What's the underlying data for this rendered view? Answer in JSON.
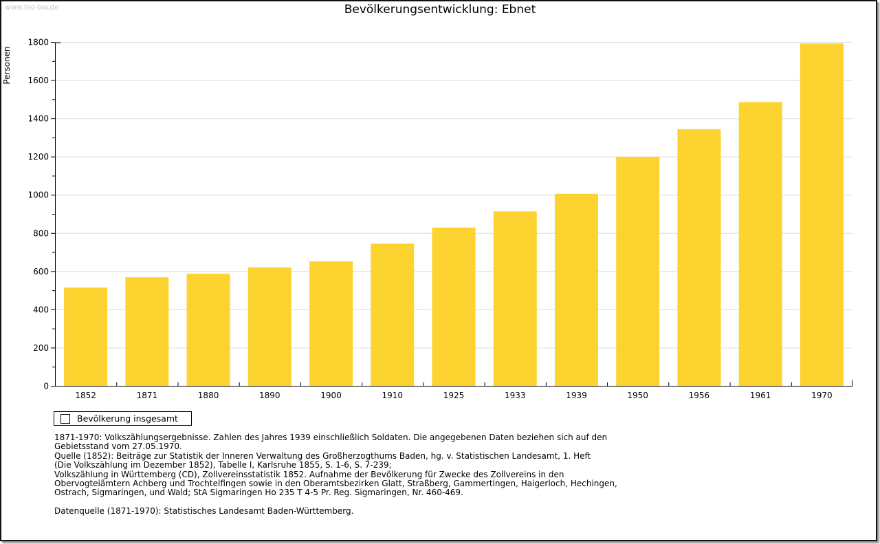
{
  "page": {
    "watermark": "www.leo-bw.de"
  },
  "chart_data": {
    "type": "bar",
    "title": "Bevölkerungsentwicklung: Ebnet",
    "xlabel": "",
    "ylabel": "Personen",
    "categories": [
      "1852",
      "1871",
      "1880",
      "1890",
      "1900",
      "1910",
      "1925",
      "1933",
      "1939",
      "1950",
      "1956",
      "1961",
      "1970"
    ],
    "values": [
      516,
      570,
      589,
      622,
      653,
      746,
      830,
      915,
      1007,
      1201,
      1345,
      1487,
      1794
    ],
    "series_name": "Bevölkerung insgesamt",
    "legend": [
      "Bevölkerung insgesamt"
    ],
    "legend_position": "bottom-left",
    "ylim": [
      0,
      1800
    ],
    "ytick_interval": 200,
    "minor_tick_interval": 100,
    "grid": true,
    "bar_color": "#FCD32F",
    "grid_color": "#DCDCDC",
    "axis_color": "#000000"
  },
  "footer": {
    "lines": [
      "1871-1970: Volkszählungsergebnisse. Zahlen des Jahres 1939 einschließlich Soldaten. Die angegebenen Daten beziehen sich auf den",
      "Gebietsstand vom 27.05.1970.",
      "Quelle (1852): Beiträge zur Statistik der Inneren Verwaltung des Großherzogthums Baden, hg. v. Statistischen Landesamt, 1. Heft",
      "(Die Volkszählung im Dezember 1852), Tabelle I, Karlsruhe 1855, S. 1-6, S. 7-239;",
      "Volkszählung in Württemberg (CD), Zollvereinsstatistik 1852. Aufnahme der Bevölkerung für Zwecke des Zollvereins in den",
      "Obervogteiämtern Achberg und Trochtelfingen sowie in den Oberamtsbezirken Glatt, Straßberg, Gammertingen, Haigerloch, Hechingen,",
      "Ostrach, Sigmaringen, und Wald; StA Sigmaringen Ho 235 T 4-5 Pr. Reg. Sigmaringen, Nr. 460-469."
    ],
    "datenquelle": "Datenquelle (1871-1970): Statistisches Landesamt Baden-Württemberg."
  }
}
